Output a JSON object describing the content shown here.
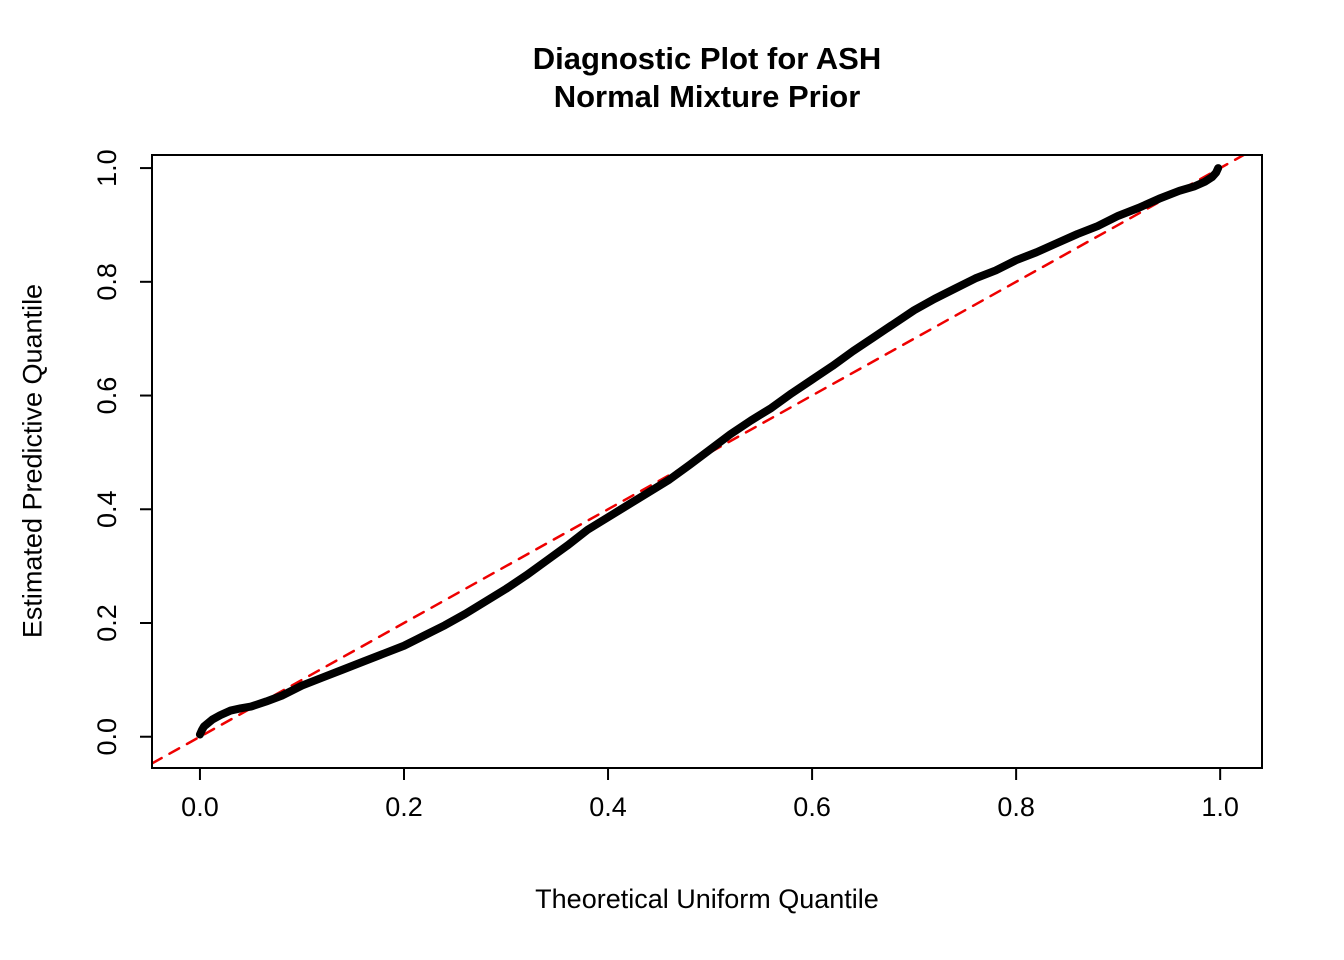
{
  "title": {
    "line1": "Diagnostic Plot for ASH",
    "line2": "Normal Mixture Prior"
  },
  "chart_data": {
    "type": "line",
    "title": "Diagnostic Plot for ASH — Normal Mixture Prior",
    "xlabel": "Theoretical Uniform Quantile",
    "ylabel": "Estimated Predictive Quantile",
    "xlim": [
      -0.047,
      1.041
    ],
    "ylim": [
      -0.055,
      1.023
    ],
    "grid": false,
    "legend": "none",
    "x_ticks": {
      "values": [
        0.0,
        0.2,
        0.4,
        0.6,
        0.8,
        1.0
      ],
      "labels": [
        "0.0",
        "0.2",
        "0.4",
        "0.6",
        "0.8",
        "1.0"
      ]
    },
    "y_ticks": {
      "values": [
        0.0,
        0.2,
        0.4,
        0.6,
        0.8,
        1.0
      ],
      "labels": [
        "0.0",
        "0.2",
        "0.4",
        "0.6",
        "0.8",
        "1.0"
      ]
    },
    "series": [
      {
        "name": "estimated-predictive-quantile-curve",
        "color": "#000000",
        "width": 8,
        "dashed": false,
        "x": [
          0.0,
          0.002,
          0.004,
          0.008,
          0.012,
          0.02,
          0.03,
          0.04,
          0.05,
          0.065,
          0.08,
          0.1,
          0.12,
          0.14,
          0.16,
          0.18,
          0.2,
          0.22,
          0.24,
          0.26,
          0.28,
          0.3,
          0.32,
          0.34,
          0.36,
          0.38,
          0.4,
          0.42,
          0.44,
          0.46,
          0.48,
          0.5,
          0.52,
          0.54,
          0.56,
          0.58,
          0.6,
          0.62,
          0.64,
          0.66,
          0.68,
          0.7,
          0.72,
          0.74,
          0.76,
          0.78,
          0.8,
          0.82,
          0.84,
          0.86,
          0.88,
          0.9,
          0.92,
          0.94,
          0.96,
          0.975,
          0.985,
          0.992,
          0.996,
          0.998
        ],
        "y": [
          0.004,
          0.012,
          0.018,
          0.024,
          0.03,
          0.038,
          0.046,
          0.05,
          0.053,
          0.062,
          0.072,
          0.09,
          0.104,
          0.118,
          0.132,
          0.146,
          0.16,
          0.178,
          0.196,
          0.216,
          0.238,
          0.26,
          0.284,
          0.31,
          0.336,
          0.364,
          0.386,
          0.408,
          0.43,
          0.452,
          0.478,
          0.505,
          0.532,
          0.556,
          0.578,
          0.604,
          0.628,
          0.652,
          0.678,
          0.702,
          0.726,
          0.75,
          0.77,
          0.788,
          0.806,
          0.82,
          0.838,
          0.852,
          0.868,
          0.884,
          0.898,
          0.916,
          0.93,
          0.946,
          0.96,
          0.968,
          0.976,
          0.984,
          0.992,
          1.0
        ]
      },
      {
        "name": "reference-line-y-equals-x",
        "color": "#EE0000",
        "width": 2.5,
        "dashed": true,
        "x": [
          -0.047,
          1.041
        ],
        "y": [
          -0.047,
          1.041
        ]
      }
    ]
  },
  "colors": {
    "background": "#FFFFFF",
    "box": "#000000",
    "curve": "#000000",
    "reference": "#EE0000"
  }
}
